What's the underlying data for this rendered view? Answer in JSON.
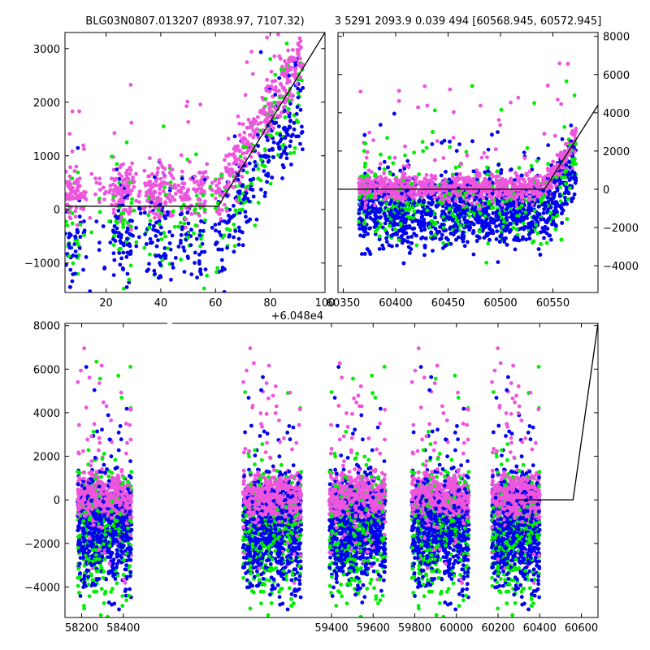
{
  "figure": {
    "title_left": "BLG03N0807.013207 (8938.97, 7107.32)",
    "title_right": "3 5291 2093.9 0.039 494 [60568.945, 60572.945]",
    "colors": {
      "green": "#00ee00",
      "blue": "#0000ee",
      "pink": "#ee55dd",
      "model": "#000000"
    }
  },
  "chart_data": [
    {
      "type": "scatter",
      "id": "top-left",
      "xlim": [
        5,
        100
      ],
      "ylim": [
        -1550,
        3300
      ],
      "x_offset_label": "+6.048e4",
      "xticks": [
        20,
        40,
        60,
        80,
        100
      ],
      "xtick_labels": [
        "20",
        "40",
        "60",
        "80",
        "100"
      ],
      "yticks": [
        -1000,
        0,
        1000,
        2000,
        3000
      ],
      "ytick_labels": [
        "−1000",
        "0",
        "1000",
        "2000",
        "3000"
      ],
      "gaps": [
        [
          12,
          22
        ],
        [
          30,
          34
        ],
        [
          44,
          47
        ],
        [
          56,
          60
        ]
      ],
      "series_colors": [
        "green",
        "blue",
        "pink"
      ],
      "model": {
        "x": [
          5,
          61,
          100
        ],
        "y": [
          60,
          60,
          3300
        ]
      }
    },
    {
      "type": "scatter",
      "id": "top-right",
      "xlim": [
        60345,
        60593
      ],
      "ylim": [
        -5400,
        8200
      ],
      "xticks": [
        60350,
        60400,
        60450,
        60500,
        60550
      ],
      "xtick_labels": [
        "60350",
        "60400",
        "60450",
        "60500",
        "60550"
      ],
      "yticks": [
        -4000,
        -2000,
        0,
        2000,
        4000,
        6000,
        8000
      ],
      "ytick_labels": [
        "−4000",
        "−2000",
        "0",
        "2000",
        "4000",
        "6000",
        "8000"
      ],
      "y_axis_side": "right",
      "data_range": [
        60365,
        60572
      ],
      "series_colors": [
        "green",
        "blue",
        "pink"
      ],
      "model": {
        "x": [
          60345,
          60542,
          60593
        ],
        "y": [
          0,
          0,
          4400
        ]
      }
    },
    {
      "type": "scatter",
      "id": "bottom",
      "xlim": [
        58120,
        60680
      ],
      "ylim": [
        -5400,
        8100
      ],
      "xticks": [
        58200,
        58400,
        59400,
        59600,
        59800,
        60000,
        60200,
        60400,
        60600
      ],
      "xtick_labels": [
        "58200",
        "58400",
        "59400",
        "59600",
        "59800",
        "60000",
        "60200",
        "60400",
        "60600"
      ],
      "yticks": [
        -4000,
        -2000,
        0,
        2000,
        4000,
        6000,
        8000
      ],
      "ytick_labels": [
        "−4000",
        "−2000",
        "0",
        "2000",
        "4000",
        "6000",
        "8000"
      ],
      "seasons": [
        [
          58180,
          58440
        ],
        [
          58975,
          59255
        ],
        [
          59390,
          59660
        ],
        [
          59785,
          60060
        ],
        [
          60170,
          60400
        ]
      ],
      "series_colors": [
        "green",
        "blue",
        "pink"
      ],
      "model": {
        "x": [
          60300,
          60560,
          60680
        ],
        "y": [
          0,
          0,
          8100
        ]
      }
    }
  ]
}
